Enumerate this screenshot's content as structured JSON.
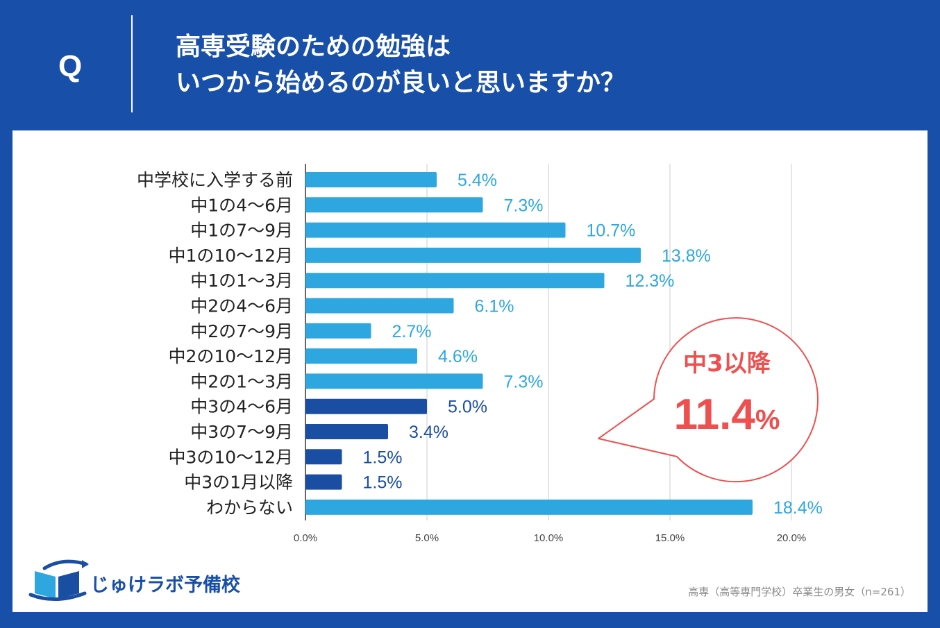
{
  "header": {
    "q_label": "Q",
    "title_line1": "高専受験のための勉強は",
    "title_line2": "いつから始めるのが良いと思いますか？"
  },
  "callout": {
    "label": "中3以降",
    "value": "11.4",
    "unit": "%"
  },
  "brand": {
    "name": "じゅけラボ予備校"
  },
  "footnote": "高専（高等専門学校）卒業生の男女（n=261）",
  "colors": {
    "background": "#184fa8",
    "bar_default": "#2ea7e0",
    "bar_highlight": "#1a4ea3",
    "callout_accent": "#ef4f4f"
  },
  "chart_data": {
    "type": "bar",
    "orientation": "horizontal",
    "categories": [
      "中学校に入学する前",
      "中1の4～6月",
      "中1の7～9月",
      "中1の10～12月",
      "中1の1～3月",
      "中2の4～6月",
      "中2の7～9月",
      "中2の10～12月",
      "中2の1～3月",
      "中3の4～6月",
      "中3の7～9月",
      "中3の10～12月",
      "中3の1月以降",
      "わからない"
    ],
    "values": [
      5.4,
      7.3,
      10.7,
      13.8,
      12.3,
      6.1,
      2.7,
      4.6,
      7.3,
      5.0,
      3.4,
      1.5,
      1.5,
      18.4
    ],
    "value_labels": [
      "5.4%",
      "7.3%",
      "10.7%",
      "13.8%",
      "12.3%",
      "6.1%",
      "2.7%",
      "4.6%",
      "7.3%",
      "5.0%",
      "3.4%",
      "1.5%",
      "1.5%",
      "18.4%"
    ],
    "highlight": [
      false,
      false,
      false,
      false,
      false,
      false,
      false,
      false,
      false,
      true,
      true,
      true,
      true,
      false
    ],
    "xlim": [
      0,
      20
    ],
    "xticks": [
      0,
      5,
      10,
      15,
      20
    ],
    "xtick_labels": [
      "0.0%",
      "5.0%",
      "10.0%",
      "15.0%",
      "20.0%"
    ],
    "grid": "vertical",
    "title": "",
    "xlabel": "",
    "ylabel": ""
  }
}
